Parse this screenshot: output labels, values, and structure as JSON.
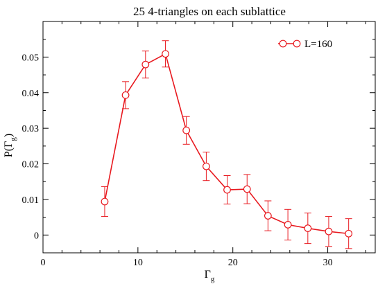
{
  "chart_data": {
    "type": "line",
    "title": "25  4-triangles on each sublattice",
    "xlabel": "Γ",
    "xlabel_sub": "g",
    "ylabel": "P(Γ",
    "ylabel_sub": "g",
    "ylabel_close": ")",
    "xlim": [
      0,
      35
    ],
    "ylim": [
      -0.005,
      0.06
    ],
    "x_ticks": [
      0,
      10,
      20,
      30
    ],
    "x_tick_labels": [
      "0",
      "10",
      "20",
      "30"
    ],
    "x_minor_step": 2,
    "y_ticks": [
      0,
      0.01,
      0.02,
      0.03,
      0.04,
      0.05
    ],
    "y_tick_labels": [
      "0",
      "0.01",
      "0.02",
      "0.03",
      "0.04",
      "0.05"
    ],
    "y_minor_step": 0.005,
    "grid": false,
    "legend_position": "top-right",
    "color": "#e8191f",
    "series": [
      {
        "name": "L=160",
        "marker": "open-circle",
        "x": [
          6.5,
          8.7,
          10.8,
          12.9,
          15.1,
          17.2,
          19.4,
          21.5,
          23.7,
          25.8,
          27.9,
          30.1,
          32.2
        ],
        "y": [
          0.0094,
          0.0393,
          0.0479,
          0.0509,
          0.0294,
          0.0193,
          0.0127,
          0.0129,
          0.0054,
          0.0029,
          0.0019,
          0.001,
          0.0004
        ],
        "yerr": [
          0.0042,
          0.0038,
          0.0038,
          0.0037,
          0.0039,
          0.004,
          0.004,
          0.0041,
          0.0042,
          0.0043,
          0.0043,
          0.0042,
          0.0042
        ]
      }
    ]
  }
}
